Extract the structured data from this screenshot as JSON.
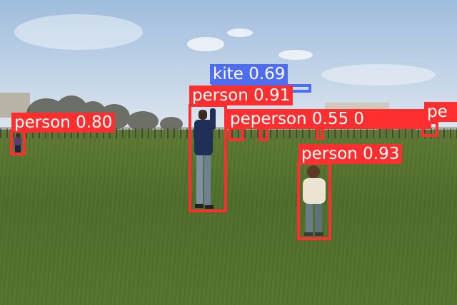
{
  "detections": [
    {
      "label": "kite 0.69",
      "class": "kite"
    },
    {
      "label": "person 0.91",
      "class": "person"
    },
    {
      "label": "person 0.80",
      "class": "person"
    },
    {
      "label": "person 0.93",
      "class": "person"
    },
    {
      "label": "peperson 0.55 0",
      "class": "person"
    },
    {
      "label": "pe",
      "class": "person"
    }
  ],
  "colors": {
    "person": "#ff2f2f",
    "kite": "#4f6df0"
  }
}
